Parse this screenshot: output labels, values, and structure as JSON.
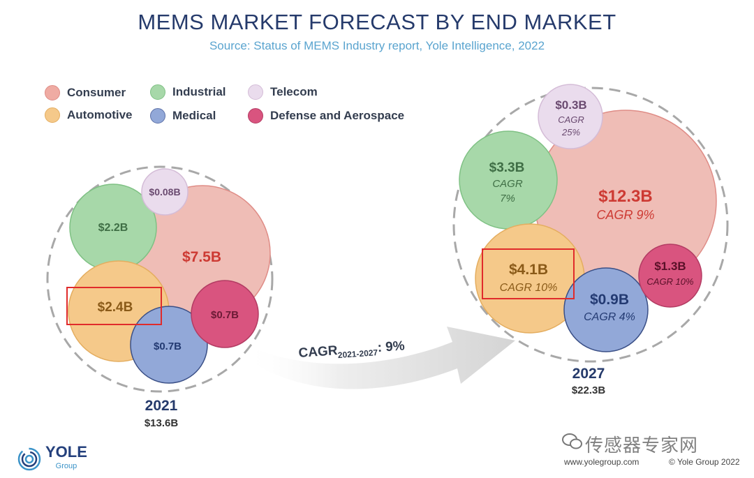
{
  "header": {
    "title": "MEMS MARKET FORECAST BY END MARKET",
    "subtitle": "Source: Status of MEMS Industry report, Yole Intelligence, 2022"
  },
  "legend": [
    {
      "key": "consumer",
      "label": "Consumer",
      "color": "#efaba3"
    },
    {
      "key": "industrial",
      "label": "Industrial",
      "color": "#a7d8a9"
    },
    {
      "key": "telecom",
      "label": "Telecom",
      "color": "#eadced"
    },
    {
      "key": "automotive",
      "label": "Automotive",
      "color": "#f5c98a"
    },
    {
      "key": "medical",
      "label": "Medical",
      "color": "#92a8d8"
    },
    {
      "key": "defense",
      "label": "Defense and Aerospace",
      "color": "#d9547f"
    }
  ],
  "chart_data": {
    "type": "bubble",
    "title": "MEMS MARKET FORECAST BY END MARKET",
    "unit": "US$ billions",
    "growth_label": {
      "prefix": "CAGR",
      "sub": "2021-2027",
      "suffix": ": 9%",
      "value_pct": 9
    },
    "years": [
      {
        "year": "2021",
        "total_label": "$13.6B",
        "total": 13.6,
        "segments": [
          {
            "key": "consumer",
            "label": "$7.5B",
            "value": 7.5
          },
          {
            "key": "industrial",
            "label": "$2.2B",
            "value": 2.2
          },
          {
            "key": "telecom",
            "label": "$0.08B",
            "value": 0.08
          },
          {
            "key": "automotive",
            "label": "$2.4B",
            "value": 2.4,
            "highlighted": true
          },
          {
            "key": "medical",
            "label": "$0.7B",
            "value": 0.7
          },
          {
            "key": "defense",
            "label": "$0.7B",
            "value": 0.7
          }
        ]
      },
      {
        "year": "2027",
        "total_label": "$22.3B",
        "total": 22.3,
        "segments": [
          {
            "key": "consumer",
            "label": "$12.3B",
            "value": 12.3,
            "cagr": "CAGR 9%"
          },
          {
            "key": "industrial",
            "label": "$3.3B",
            "value": 3.3,
            "cagr1": "CAGR",
            "cagr2": "7%"
          },
          {
            "key": "telecom",
            "label": "$0.3B",
            "value": 0.3,
            "cagr1": "CAGR",
            "cagr2": "25%"
          },
          {
            "key": "automotive",
            "label": "$4.1B",
            "value": 4.1,
            "cagr": "CAGR 10%",
            "highlighted": true
          },
          {
            "key": "medical",
            "label": "$0.9B",
            "value": 0.9,
            "cagr": "CAGR 4%"
          },
          {
            "key": "defense",
            "label": "$1.3B",
            "value": 1.3,
            "cagr": "CAGR 10%"
          }
        ]
      }
    ]
  },
  "footer": {
    "logo_name": "YOLE",
    "logo_sub": "Group",
    "url": "www.yolegroup.com",
    "copyright": "© Yole Group 2022",
    "watermark": "传感器专家网"
  }
}
